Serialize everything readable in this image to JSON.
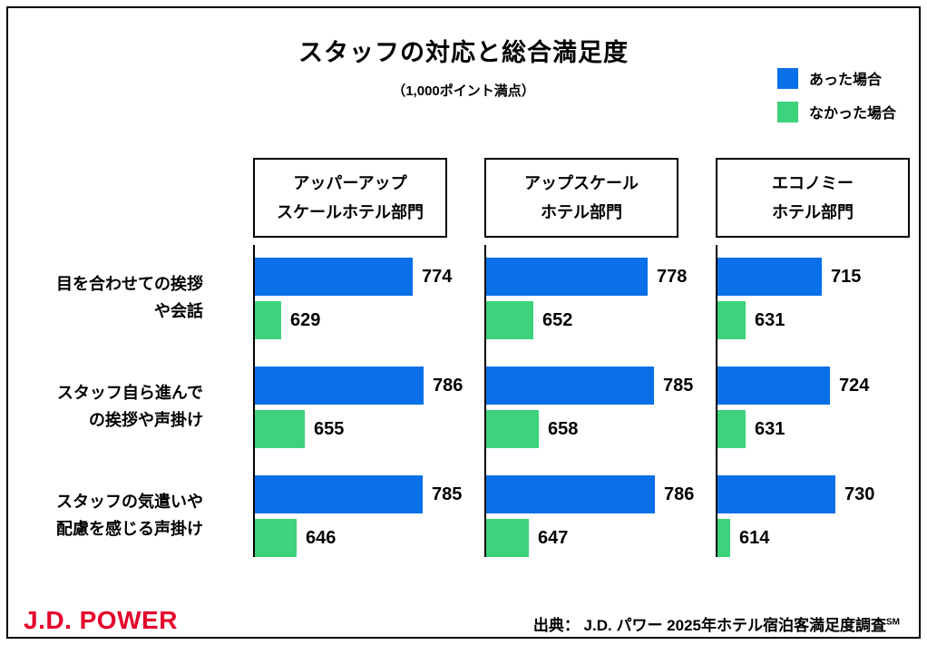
{
  "legend": [
    {
      "label": "あった場合",
      "color": "#0a70e8"
    },
    {
      "label": "なかった場合",
      "color": "#3cd37c"
    }
  ],
  "footer": {
    "logo": "J.D. POWER",
    "logo_color": "#e4002b",
    "source": "出典： J.D. パワー 2025年ホテル宿泊客満足度調査",
    "source_superscript": "SM"
  },
  "chart_data": {
    "type": "bar",
    "orientation": "horizontal",
    "title": "スタッフの対応と総合満足度",
    "subtitle": "（1,000ポイント満点）",
    "value_base": 600,
    "value_max": 800,
    "grid": false,
    "legend_position": "top-right",
    "categories": [
      [
        "目を合わせての挨拶",
        "や会話"
      ],
      [
        "スタッフ自ら進んで",
        "の挨拶や声掛け"
      ],
      [
        "スタッフの気遣いや",
        "配慮を感じる声掛け"
      ]
    ],
    "panels": [
      {
        "title": [
          "アッパーアップ",
          "スケールホテル部門"
        ],
        "series": [
          {
            "name": "あった場合",
            "values": [
              774,
              786,
              785
            ]
          },
          {
            "name": "なかった場合",
            "values": [
              629,
              655,
              646
            ]
          }
        ]
      },
      {
        "title": [
          "アップスケール",
          "ホテル部門"
        ],
        "series": [
          {
            "name": "あった場合",
            "values": [
              778,
              785,
              786
            ]
          },
          {
            "name": "なかった場合",
            "values": [
              652,
              658,
              647
            ]
          }
        ]
      },
      {
        "title": [
          "エコノミー",
          "ホテル部門"
        ],
        "series": [
          {
            "name": "あった場合",
            "values": [
              715,
              724,
              730
            ]
          },
          {
            "name": "なかった場合",
            "values": [
              631,
              631,
              614
            ]
          }
        ]
      }
    ]
  }
}
